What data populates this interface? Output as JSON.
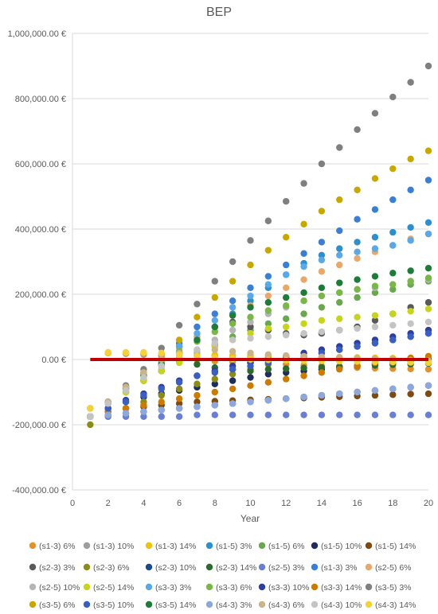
{
  "chart_data": {
    "type": "scatter",
    "title": "BEP",
    "xlabel": "Year",
    "ylabel": "",
    "xlim": [
      0,
      20
    ],
    "ylim": [
      -400000,
      1000000
    ],
    "x_ticks": [
      "0",
      "2",
      "4",
      "6",
      "8",
      "10",
      "12",
      "14",
      "16",
      "18",
      "20"
    ],
    "y_ticks": [
      "-400,000.00 €",
      "-200,000.00 €",
      "0.00 €",
      "200,000.00 €",
      "400,000.00 €",
      "600,000.00 €",
      "800,000.00 €",
      "1,000,000.00 €"
    ],
    "grid": "horizontal",
    "legend_position": "bottom",
    "zero_line_color": "#c00000",
    "x": [
      1,
      2,
      3,
      4,
      5,
      6,
      7,
      8,
      9,
      10,
      11,
      12,
      13,
      14,
      15,
      16,
      17,
      18,
      19,
      20
    ],
    "series": [
      {
        "name": "(s1-3) 6%",
        "color": "#e1922f",
        "y": [
          -150000,
          20000,
          18000,
          15000,
          10000,
          5000,
          0,
          -5000,
          -8000,
          -10000,
          -12000,
          -15000,
          -18000,
          -20000,
          -22000,
          -25000,
          -27000,
          -28000,
          -29000,
          -30000
        ]
      },
      {
        "name": "(s1-3) 10%",
        "color": "#9e9e9e",
        "y": [
          -150000,
          20000,
          18000,
          17000,
          15000,
          13000,
          12000,
          11000,
          10000,
          9000,
          8000,
          7000,
          6000,
          5000,
          4000,
          3000,
          2000,
          1000,
          0,
          -1000
        ]
      },
      {
        "name": "(s1-3) 14%",
        "color": "#f2c00e",
        "y": [
          -150000,
          20000,
          20000,
          20000,
          18000,
          16000,
          15000,
          14000,
          13000,
          12000,
          11000,
          10000,
          9000,
          8000,
          7000,
          6000,
          5000,
          4000,
          3000,
          2000
        ]
      },
      {
        "name": "(s1-5) 3%",
        "color": "#2e8fcf",
        "y": [
          -175000,
          -130000,
          -90000,
          -50000,
          -20000,
          20000,
          60000,
          100000,
          140000,
          180000,
          220000,
          260000,
          295000,
          320000,
          340000,
          360000,
          375000,
          390000,
          405000,
          420000
        ]
      },
      {
        "name": "(s1-5) 6%",
        "color": "#6aa84f",
        "y": [
          -175000,
          -135000,
          -100000,
          -65000,
          -35000,
          -5000,
          20000,
          45000,
          70000,
          90000,
          110000,
          125000,
          140000,
          160000,
          175000,
          190000,
          205000,
          215000,
          230000,
          240000
        ]
      },
      {
        "name": "(s1-5) 10%",
        "color": "#1f2d5c",
        "y": [
          -175000,
          -150000,
          -130000,
          -115000,
          -105000,
          -95000,
          -85000,
          -75000,
          -65000,
          -55000,
          -45000,
          -40000,
          -35000,
          -30000,
          -25000,
          -20000,
          -15000,
          -10000,
          -5000,
          0
        ]
      },
      {
        "name": "(s1-5) 14%",
        "color": "#7f4a10",
        "y": [
          -175000,
          -160000,
          -150000,
          -145000,
          -140000,
          -135000,
          -130000,
          -128000,
          -126000,
          -124000,
          -122000,
          -120000,
          -118000,
          -116000,
          -114000,
          -112000,
          -110000,
          -108000,
          -106000,
          -105000
        ]
      },
      {
        "name": "(s2-3) 3%",
        "color": "#595959",
        "y": [
          -175000,
          -130000,
          -85000,
          -40000,
          0,
          40000,
          70000,
          100000,
          115000,
          100000,
          90000,
          80000,
          75000,
          80000,
          90000,
          100000,
          120000,
          140000,
          160000,
          175000
        ]
      },
      {
        "name": "(s2-3) 6%",
        "color": "#8b8b1a",
        "y": [
          -200000,
          -175000,
          -150000,
          -130000,
          -110000,
          -90000,
          -75000,
          -60000,
          -45000,
          -30000,
          -15000,
          0,
          10000,
          20000,
          30000,
          40000,
          50000,
          60000,
          70000,
          80000
        ]
      },
      {
        "name": "(s2-3) 10%",
        "color": "#1a4a8a",
        "y": [
          -175000,
          -170000,
          -165000,
          -160000,
          -155000,
          -150000,
          -145000,
          -140000,
          -135000,
          -130000,
          -125000,
          -120000,
          -115000,
          -110000,
          -105000,
          -100000,
          -95000,
          -90000,
          -85000,
          -80000
        ]
      },
      {
        "name": "(s2-3) 14%",
        "color": "#2d6a2d",
        "y": [
          -175000,
          -135000,
          -100000,
          -65000,
          -35000,
          -5000,
          -15000,
          -25000,
          -30000,
          -35000,
          -30000,
          -28000,
          -26000,
          -24000,
          -22000,
          -20000,
          -18000,
          -16000,
          -14000,
          -12000
        ]
      },
      {
        "name": "(s2-5) 3%",
        "color": "#6a7fd1",
        "y": [
          -175000,
          -175000,
          -175000,
          -175000,
          -175000,
          -175000,
          -170000,
          -170000,
          -170000,
          -170000,
          -170000,
          -170000,
          -170000,
          -170000,
          -170000,
          -170000,
          -170000,
          -170000,
          -170000,
          -170000
        ]
      },
      {
        "name": "(s1-3) 3%",
        "color": "#3a7fd1",
        "y": [
          -175000,
          -130000,
          -80000,
          -40000,
          0,
          50000,
          100000,
          140000,
          180000,
          220000,
          255000,
          290000,
          325000,
          360000,
          395000,
          430000,
          460000,
          490000,
          520000,
          550000
        ]
      },
      {
        "name": "(s2-5) 6%",
        "color": "#e8a869",
        "y": [
          -175000,
          -130000,
          -85000,
          -45000,
          -5000,
          35000,
          70000,
          100000,
          135000,
          165000,
          195000,
          220000,
          245000,
          270000,
          290000,
          310000,
          330000,
          350000,
          370000,
          385000
        ]
      },
      {
        "name": "(s2-5) 10%",
        "color": "#b5b5b5",
        "y": [
          -175000,
          -135000,
          -95000,
          -60000,
          -30000,
          0,
          30000,
          60000,
          90000,
          115000,
          140000,
          160000,
          180000,
          195000,
          205000,
          215000,
          220000,
          230000,
          240000,
          245000
        ]
      },
      {
        "name": "(s2-5) 14%",
        "color": "#c6d41a",
        "y": [
          -175000,
          -135000,
          -100000,
          -65000,
          -35000,
          -10000,
          15000,
          40000,
          60000,
          80000,
          95000,
          100000,
          110000,
          120000,
          125000,
          130000,
          135000,
          140000,
          148000,
          155000
        ]
      },
      {
        "name": "(s3-3) 3%",
        "color": "#5aa9e6",
        "y": [
          -175000,
          -130000,
          -85000,
          -40000,
          0,
          40000,
          80000,
          120000,
          160000,
          195000,
          230000,
          260000,
          285000,
          305000,
          320000,
          330000,
          340000,
          350000,
          365000,
          385000
        ]
      },
      {
        "name": "(s3-3) 6%",
        "color": "#7ab648",
        "y": [
          -175000,
          -130000,
          -90000,
          -50000,
          -10000,
          25000,
          55000,
          85000,
          110000,
          130000,
          150000,
          165000,
          180000,
          195000,
          205000,
          215000,
          225000,
          230000,
          240000,
          250000
        ]
      },
      {
        "name": "(s3-3) 10%",
        "color": "#2c3e9e",
        "y": [
          -175000,
          -150000,
          -125000,
          -105000,
          -85000,
          -65000,
          -50000,
          -35000,
          -20000,
          -10000,
          0,
          10000,
          20000,
          30000,
          40000,
          50000,
          60000,
          70000,
          80000,
          90000
        ]
      },
      {
        "name": "(s3-3) 14%",
        "color": "#cc7a00",
        "y": [
          -175000,
          -160000,
          -150000,
          -140000,
          -130000,
          -120000,
          -110000,
          -100000,
          -90000,
          -80000,
          -70000,
          -60000,
          -50000,
          -40000,
          -30000,
          -20000,
          -10000,
          0,
          5000,
          10000
        ]
      },
      {
        "name": "(s3-5) 3%",
        "color": "#7f7f7f",
        "y": [
          -175000,
          -130000,
          -80000,
          -30000,
          35000,
          105000,
          170000,
          240000,
          300000,
          365000,
          425000,
          485000,
          540000,
          600000,
          650000,
          705000,
          755000,
          805000,
          850000,
          900000
        ]
      },
      {
        "name": "(s3-5) 6%",
        "color": "#c8a800",
        "y": [
          -175000,
          -130000,
          -85000,
          -40000,
          0,
          60000,
          130000,
          190000,
          240000,
          290000,
          335000,
          375000,
          415000,
          455000,
          490000,
          520000,
          555000,
          585000,
          615000,
          640000
        ]
      },
      {
        "name": "(s3-5) 10%",
        "color": "#3a5fc0",
        "y": [
          -175000,
          -150000,
          -130000,
          -110000,
          -90000,
          -70000,
          -50000,
          -40000,
          -30000,
          -20000,
          -10000,
          0,
          10000,
          20000,
          30000,
          40000,
          50000,
          60000,
          70000,
          80000
        ]
      },
      {
        "name": "(s3-5) 14%",
        "color": "#1e7b3a",
        "y": [
          -175000,
          -130000,
          -90000,
          -50000,
          -15000,
          20000,
          60000,
          100000,
          135000,
          160000,
          175000,
          190000,
          205000,
          220000,
          235000,
          245000,
          255000,
          265000,
          272000,
          280000
        ]
      },
      {
        "name": "(s4-3) 3%",
        "color": "#8fa8dc",
        "y": [
          -175000,
          -170000,
          -165000,
          -160000,
          -155000,
          -150000,
          -145000,
          -140000,
          -135000,
          -130000,
          -125000,
          -120000,
          -115000,
          -110000,
          -105000,
          -100000,
          -95000,
          -90000,
          -85000,
          -80000
        ]
      },
      {
        "name": "(s4-3) 6%",
        "color": "#c9b38a",
        "y": [
          -175000,
          -130000,
          -85000,
          -40000,
          0,
          20000,
          25000,
          30000,
          25000,
          20000,
          15000,
          12000,
          10000,
          8000,
          6000,
          4000,
          2000,
          0,
          -2000,
          -4000
        ]
      },
      {
        "name": "(s4-3) 10%",
        "color": "#c4c4c4",
        "y": [
          -175000,
          -135000,
          -95000,
          -55000,
          -20000,
          10000,
          30000,
          50000,
          60000,
          65000,
          70000,
          75000,
          80000,
          85000,
          90000,
          95000,
          100000,
          105000,
          110000,
          115000
        ]
      },
      {
        "name": "(s4-3) 14%",
        "color": "#f5d13a",
        "y": [
          -150000,
          22000,
          22000,
          22000,
          20000,
          15000,
          10000,
          5000,
          2000,
          0,
          -1000,
          -2000,
          -3000,
          -4000,
          -5000,
          -6000,
          -7000,
          -8000,
          -9000,
          -10000
        ]
      }
    ]
  }
}
